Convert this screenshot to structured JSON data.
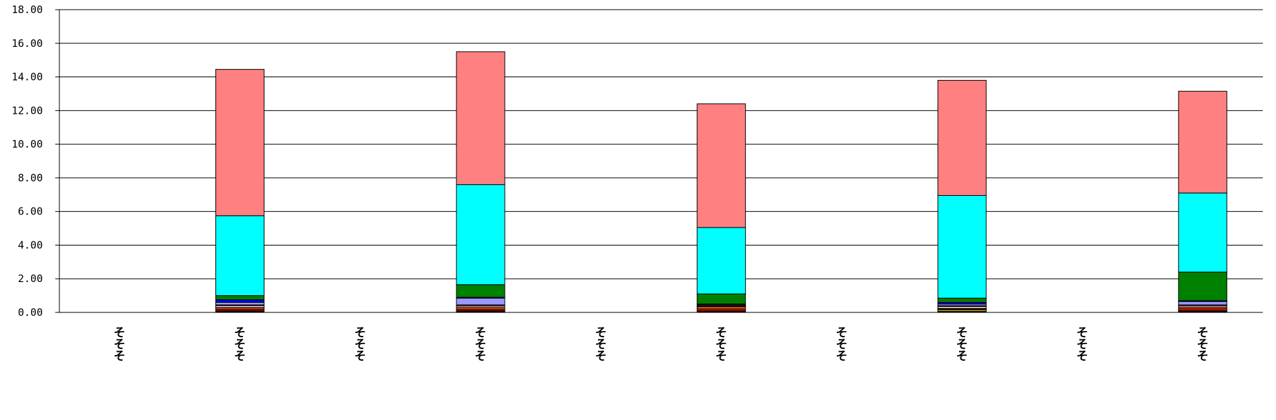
{
  "chart_data": {
    "type": "bar",
    "stacked": true,
    "title": "",
    "xlabel": "",
    "ylabel": "",
    "ylim": [
      0,
      18
    ],
    "yticks": [
      "0.00",
      "2.00",
      "4.00",
      "6.00",
      "8.00",
      "10.00",
      "12.00",
      "14.00",
      "16.00",
      "18.00"
    ],
    "grid": true,
    "legend": "none",
    "categories": [
      "そそそ",
      "そそそ",
      "そそそ",
      "そそそ",
      "そそそ",
      "そそそ",
      "そそそ",
      "そそそ",
      "そそそ",
      "そそそ"
    ],
    "series": [
      {
        "color": "#000000",
        "values": [
          0,
          0.06,
          0,
          0.06,
          0,
          0.06,
          0,
          0.06,
          0,
          0.06
        ]
      },
      {
        "color": "#ffff00",
        "values": [
          0,
          0.04,
          0,
          0.04,
          0,
          0.03,
          0,
          0.08,
          0,
          0.04
        ]
      },
      {
        "color": "#ff0000",
        "values": [
          0,
          0.1,
          0,
          0.1,
          0,
          0.12,
          0,
          0.06,
          0,
          0.12
        ]
      },
      {
        "color": "#e36c09",
        "values": [
          0,
          0.1,
          0,
          0.12,
          0,
          0.13,
          0,
          0.05,
          0,
          0.1
        ]
      },
      {
        "color": "#ffffff",
        "values": [
          0,
          0.1,
          0,
          0.08,
          0,
          0.04,
          0,
          0.1,
          0,
          0.08
        ]
      },
      {
        "color": "#ff00ff",
        "values": [
          0,
          0.05,
          0,
          0.05,
          0,
          0.02,
          0,
          0.05,
          0,
          0.05
        ]
      },
      {
        "color": "#9999ff",
        "values": [
          0,
          0.15,
          0,
          0.4,
          0,
          0.05,
          0,
          0.1,
          0,
          0.2
        ]
      },
      {
        "color": "#0000ff",
        "values": [
          0,
          0.15,
          0,
          0.05,
          0,
          0.05,
          0,
          0.1,
          0,
          0.05
        ]
      },
      {
        "color": "#008000",
        "values": [
          0,
          0.25,
          0,
          0.75,
          0,
          0.6,
          0,
          0.25,
          0,
          1.7
        ]
      },
      {
        "color": "#00ffff",
        "values": [
          0,
          4.75,
          0,
          5.95,
          0,
          3.95,
          0,
          6.1,
          0,
          4.7
        ]
      },
      {
        "color": "#ff8080",
        "values": [
          0,
          8.7,
          0,
          7.9,
          0,
          7.35,
          0,
          6.85,
          0,
          6.05
        ]
      }
    ]
  }
}
